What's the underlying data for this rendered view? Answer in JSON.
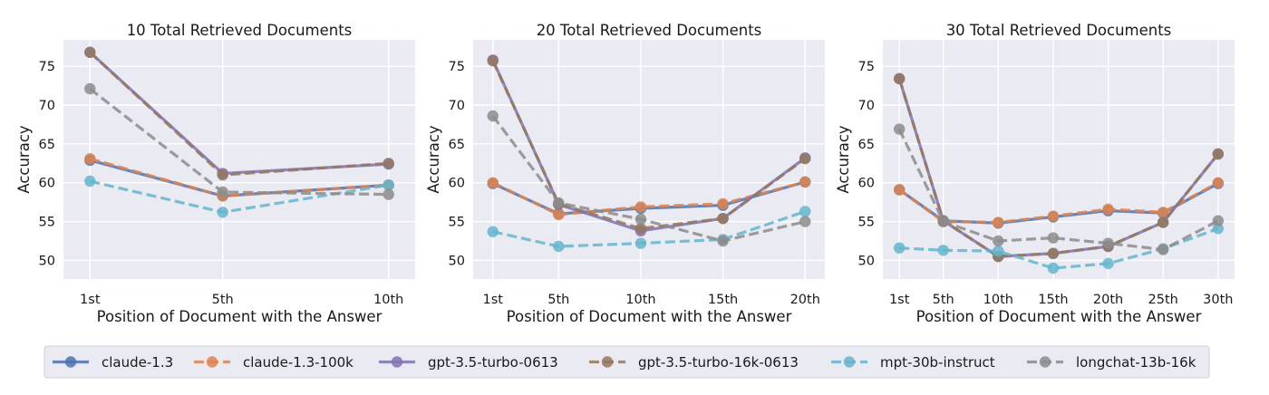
{
  "chart_data": [
    {
      "type": "line",
      "title": "10 Total Retrieved Documents",
      "xlabel": "Position of Document with the Answer",
      "ylabel": "Accuracy",
      "categories": [
        "1st",
        "5th",
        "10th"
      ],
      "x": [
        1,
        5,
        10
      ],
      "xlim": [
        0.2,
        10.8
      ],
      "ylim": [
        47.6,
        78.4
      ],
      "yticks": [
        50,
        55,
        60,
        65,
        70,
        75
      ],
      "grid": true,
      "series": [
        {
          "name": "claude-1.3",
          "values": [
            62.9,
            58.3,
            59.7
          ]
        },
        {
          "name": "claude-1.3-100k",
          "values": [
            63.1,
            58.3,
            59.7
          ]
        },
        {
          "name": "gpt-3.5-turbo-0613",
          "values": [
            76.8,
            61.2,
            62.4
          ]
        },
        {
          "name": "gpt-3.5-turbo-16k-0613",
          "values": [
            76.8,
            61.0,
            62.5
          ]
        },
        {
          "name": "mpt-30b-instruct",
          "values": [
            60.2,
            56.2,
            59.7
          ]
        },
        {
          "name": "longchat-13b-16k",
          "values": [
            72.1,
            58.8,
            58.5
          ]
        }
      ]
    },
    {
      "type": "line",
      "title": "20 Total Retrieved Documents",
      "xlabel": "Position of Document with the Answer",
      "ylabel": "Accuracy",
      "categories": [
        "1st",
        "5th",
        "10th",
        "15th",
        "20th"
      ],
      "x": [
        1,
        5,
        10,
        15,
        20
      ],
      "xlim": [
        -0.2,
        21.2
      ],
      "ylim": [
        47.6,
        78.4
      ],
      "yticks": [
        50,
        55,
        60,
        65,
        70,
        75
      ],
      "grid": true,
      "series": [
        {
          "name": "claude-1.3",
          "values": [
            59.9,
            56.0,
            56.7,
            57.1,
            60.1
          ]
        },
        {
          "name": "claude-1.3-100k",
          "values": [
            60.0,
            55.9,
            56.9,
            57.3,
            60.1
          ]
        },
        {
          "name": "gpt-3.5-turbo-0613",
          "values": [
            75.8,
            57.2,
            53.8,
            55.4,
            63.2
          ]
        },
        {
          "name": "gpt-3.5-turbo-16k-0613",
          "values": [
            75.7,
            57.3,
            54.1,
            55.4,
            63.1
          ]
        },
        {
          "name": "mpt-30b-instruct",
          "values": [
            53.7,
            51.8,
            52.2,
            52.7,
            56.3
          ]
        },
        {
          "name": "longchat-13b-16k",
          "values": [
            68.6,
            57.4,
            55.3,
            52.5,
            55.0
          ]
        }
      ]
    },
    {
      "type": "line",
      "title": "30 Total Retrieved Documents",
      "xlabel": "Position of Document with the Answer",
      "ylabel": "Accuracy",
      "categories": [
        "1st",
        "5th",
        "10th",
        "15th",
        "20th",
        "25th",
        "30th"
      ],
      "x": [
        1,
        5,
        10,
        15,
        20,
        25,
        30
      ],
      "xlim": [
        -0.5,
        31.5
      ],
      "ylim": [
        47.6,
        78.4
      ],
      "yticks": [
        50,
        55,
        60,
        65,
        70,
        75
      ],
      "grid": true,
      "series": [
        {
          "name": "claude-1.3",
          "values": [
            59.1,
            55.1,
            54.8,
            55.6,
            56.4,
            56.1,
            59.9
          ]
        },
        {
          "name": "claude-1.3-100k",
          "values": [
            59.1,
            55.0,
            54.9,
            55.7,
            56.6,
            56.2,
            60.0
          ]
        },
        {
          "name": "gpt-3.5-turbo-0613",
          "values": [
            73.4,
            55.1,
            50.5,
            50.9,
            51.8,
            54.9,
            63.7
          ]
        },
        {
          "name": "gpt-3.5-turbo-16k-0613",
          "values": [
            73.4,
            55.1,
            50.5,
            50.9,
            51.8,
            54.9,
            63.7
          ]
        },
        {
          "name": "mpt-30b-instruct",
          "values": [
            51.6,
            51.3,
            51.2,
            49.0,
            49.6,
            51.5,
            54.1
          ]
        },
        {
          "name": "longchat-13b-16k",
          "values": [
            66.9,
            55.0,
            52.5,
            52.9,
            52.2,
            51.4,
            55.1
          ]
        }
      ]
    }
  ],
  "styles": {
    "plot_background": "#eaeaf2",
    "grid_color": "#ffffff",
    "series_styles": [
      {
        "color": "#4c72b0",
        "dash": false
      },
      {
        "color": "#dd8452",
        "dash": true
      },
      {
        "color": "#8172b3",
        "dash": false
      },
      {
        "color": "#937860",
        "dash": true
      },
      {
        "color": "#64b5cd",
        "dash": true
      },
      {
        "color": "#8c8c8c",
        "dash": true
      }
    ]
  },
  "legend": {
    "placement": "bottom-center",
    "items": [
      "claude-1.3",
      "claude-1.3-100k",
      "gpt-3.5-turbo-0613",
      "gpt-3.5-turbo-16k-0613",
      "mpt-30b-instruct",
      "longchat-13b-16k"
    ]
  }
}
